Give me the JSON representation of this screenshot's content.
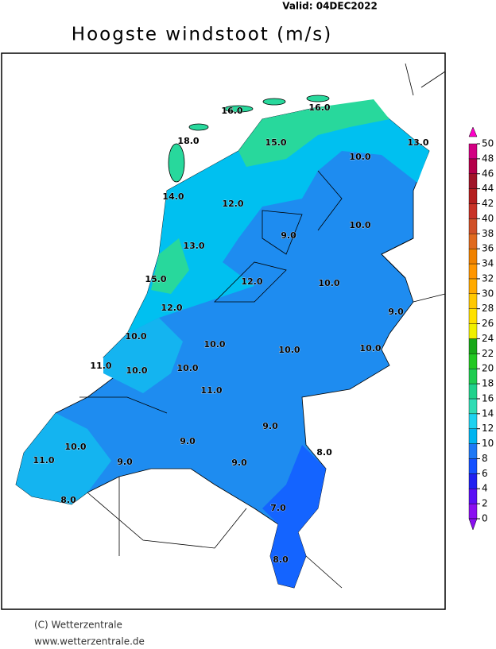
{
  "header": {
    "valid": "Valid: 04DEC2022",
    "title": "Hoogste windstoot (m/s)"
  },
  "map": {
    "labels": [
      "16.0",
      "16.0",
      "18.0",
      "15.0",
      "13.0",
      "10.0",
      "14.0",
      "12.0",
      "9.0",
      "10.0",
      "13.0",
      "15.0",
      "12.0",
      "10.0",
      "9.0",
      "12.0",
      "10.0",
      "10.0",
      "10.0",
      "10.0",
      "11.0",
      "10.0",
      "10.0",
      "11.0",
      "9.0",
      "10.0",
      "9.0",
      "8.0",
      "11.0",
      "9.0",
      "9.0",
      "8.0",
      "7.0",
      "8.0"
    ]
  },
  "colorbar": {
    "ticks": [
      0,
      2,
      4,
      6,
      8,
      10,
      12,
      14,
      16,
      18,
      20,
      22,
      24,
      26,
      28,
      30,
      32,
      34,
      36,
      38,
      40,
      42,
      44,
      46,
      48,
      50
    ],
    "colors": [
      "#8a10f0",
      "#5a10f5",
      "#2020f0",
      "#1450ff",
      "#1e78f5",
      "#00b4f0",
      "#1ed2f0",
      "#30dcb4",
      "#20d28c",
      "#1ecc50",
      "#22c822",
      "#18a818",
      "#f0f000",
      "#ffe100",
      "#ffc800",
      "#ffaa00",
      "#ff9600",
      "#f08200",
      "#e06a1e",
      "#d05028",
      "#c83226",
      "#b41e1e",
      "#a01428",
      "#b4004a",
      "#d20082"
    ]
  },
  "footer": {
    "copyright": "(C) Wetterzentrale",
    "url": "www.wetterzentrale.de"
  }
}
